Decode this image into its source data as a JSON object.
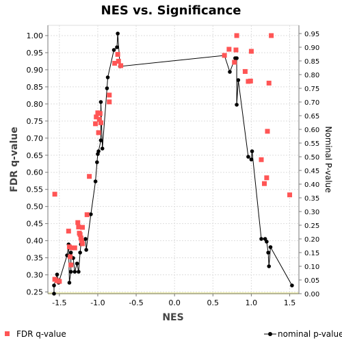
{
  "chart_data": {
    "type": "scatter",
    "title": "NES vs. Significance",
    "xlabel": "NES",
    "ylabel_left": "FDR q-value",
    "ylabel_right": "Nominal P-value",
    "xlim": [
      -1.65,
      1.62
    ],
    "ylim_left": [
      0.245,
      1.03
    ],
    "ylim_right": [
      0.0,
      0.98
    ],
    "x_ticks": [
      "-1.5",
      "-1.0",
      "-0.5",
      "0.0",
      "0.5",
      "1.0",
      "1.5"
    ],
    "x_tick_values": [
      -1.5,
      -1.0,
      -0.5,
      0.0,
      0.5,
      1.0,
      1.5
    ],
    "y_ticks_left": [
      "0.25",
      "0.30",
      "0.35",
      "0.40",
      "0.45",
      "0.50",
      "0.55",
      "0.60",
      "0.65",
      "0.70",
      "0.75",
      "0.80",
      "0.85",
      "0.90",
      "0.95",
      "1.00"
    ],
    "y_tick_values_left": [
      0.25,
      0.3,
      0.35,
      0.4,
      0.45,
      0.5,
      0.55,
      0.6,
      0.65,
      0.7,
      0.75,
      0.8,
      0.85,
      0.9,
      0.95,
      1.0
    ],
    "y_ticks_right": [
      "0.00",
      "0.05",
      "0.10",
      "0.15",
      "0.20",
      "0.25",
      "0.30",
      "0.35",
      "0.40",
      "0.45",
      "0.50",
      "0.55",
      "0.60",
      "0.65",
      "0.70",
      "0.75",
      "0.80",
      "0.85",
      "0.90",
      "0.95"
    ],
    "y_tick_values_right": [
      0.0,
      0.05,
      0.1,
      0.15,
      0.2,
      0.25,
      0.3,
      0.35,
      0.4,
      0.45,
      0.5,
      0.55,
      0.6,
      0.65,
      0.7,
      0.75,
      0.8,
      0.85,
      0.9,
      0.95
    ],
    "grid": true,
    "legend_placement": "bottom",
    "series": [
      {
        "name": "FDR q-value",
        "axis": "left",
        "marker": "square",
        "color": "#ff5555",
        "points": [
          [
            -1.56,
            0.536
          ],
          [
            -1.56,
            0.287
          ],
          [
            -1.53,
            0.283
          ],
          [
            -1.5,
            0.281
          ],
          [
            -1.38,
            0.428
          ],
          [
            -1.37,
            0.382
          ],
          [
            -1.36,
            0.353
          ],
          [
            -1.35,
            0.329
          ],
          [
            -1.34,
            0.379
          ],
          [
            -1.3,
            0.379
          ],
          [
            -1.26,
            0.453
          ],
          [
            -1.25,
            0.44
          ],
          [
            -1.24,
            0.422
          ],
          [
            -1.23,
            0.418
          ],
          [
            -1.22,
            0.408
          ],
          [
            -1.21,
            0.4
          ],
          [
            -1.2,
            0.391
          ],
          [
            -1.2,
            0.439
          ],
          [
            -1.14,
            0.476
          ],
          [
            -1.11,
            0.588
          ],
          [
            -1.03,
            0.742
          ],
          [
            -1.02,
            0.762
          ],
          [
            -1.0,
            0.774
          ],
          [
            -0.99,
            0.716
          ],
          [
            -0.98,
            0.755
          ],
          [
            -0.97,
            0.772
          ],
          [
            -0.96,
            0.745
          ],
          [
            -0.85,
            0.826
          ],
          [
            -0.85,
            0.806
          ],
          [
            -0.78,
            0.919
          ],
          [
            -0.74,
            0.945
          ],
          [
            -0.73,
            0.925
          ],
          [
            -0.7,
            0.912
          ],
          [
            0.65,
            0.942
          ],
          [
            0.71,
            0.96
          ],
          [
            0.78,
            0.922
          ],
          [
            0.8,
            0.958
          ],
          [
            0.81,
            1.0
          ],
          [
            0.92,
            0.895
          ],
          [
            0.96,
            0.866
          ],
          [
            0.99,
            0.867
          ],
          [
            1.0,
            0.954
          ],
          [
            1.13,
            0.637
          ],
          [
            1.17,
            0.567
          ],
          [
            1.2,
            0.584
          ],
          [
            1.21,
            0.72
          ],
          [
            1.23,
            0.861
          ],
          [
            1.26,
            1.0
          ],
          [
            1.5,
            0.534
          ]
        ]
      },
      {
        "name": "nominal p-value",
        "axis": "right",
        "marker": "circle-line",
        "color": "#000000",
        "points": [
          [
            -1.57,
            0.0
          ],
          [
            -1.57,
            0.03
          ],
          [
            -1.53,
            0.07
          ],
          [
            -1.51,
            0.04
          ],
          [
            -1.4,
            0.14
          ],
          [
            -1.38,
            0.18
          ],
          [
            -1.37,
            0.04
          ],
          [
            -1.35,
            0.08
          ],
          [
            -1.35,
            0.15
          ],
          [
            -1.32,
            0.13
          ],
          [
            -1.3,
            0.08
          ],
          [
            -1.27,
            0.11
          ],
          [
            -1.25,
            0.08
          ],
          [
            -1.23,
            0.15
          ],
          [
            -1.22,
            0.18
          ],
          [
            -1.16,
            0.2
          ],
          [
            -1.15,
            0.16
          ],
          [
            -1.09,
            0.29
          ],
          [
            -1.03,
            0.41
          ],
          [
            -1.01,
            0.48
          ],
          [
            -1.0,
            0.51
          ],
          [
            -0.99,
            0.52
          ],
          [
            -0.96,
            0.56
          ],
          [
            -0.96,
            0.7
          ],
          [
            -0.94,
            0.53
          ],
          [
            -0.88,
            0.75
          ],
          [
            -0.87,
            0.79
          ],
          [
            -0.79,
            0.89
          ],
          [
            -0.75,
            0.9
          ],
          [
            -0.74,
            0.95
          ],
          [
            -0.71,
            0.83
          ],
          [
            0.65,
            0.87
          ],
          [
            0.72,
            0.81
          ],
          [
            0.79,
            0.86
          ],
          [
            0.81,
            0.86
          ],
          [
            0.81,
            0.69
          ],
          [
            0.83,
            0.78
          ],
          [
            0.96,
            0.5
          ],
          [
            1.0,
            0.49
          ],
          [
            1.01,
            0.52
          ],
          [
            1.13,
            0.2
          ],
          [
            1.18,
            0.2
          ],
          [
            1.2,
            0.19
          ],
          [
            1.22,
            0.15
          ],
          [
            1.23,
            0.1
          ],
          [
            1.25,
            0.17
          ],
          [
            1.53,
            0.03
          ]
        ]
      }
    ]
  }
}
